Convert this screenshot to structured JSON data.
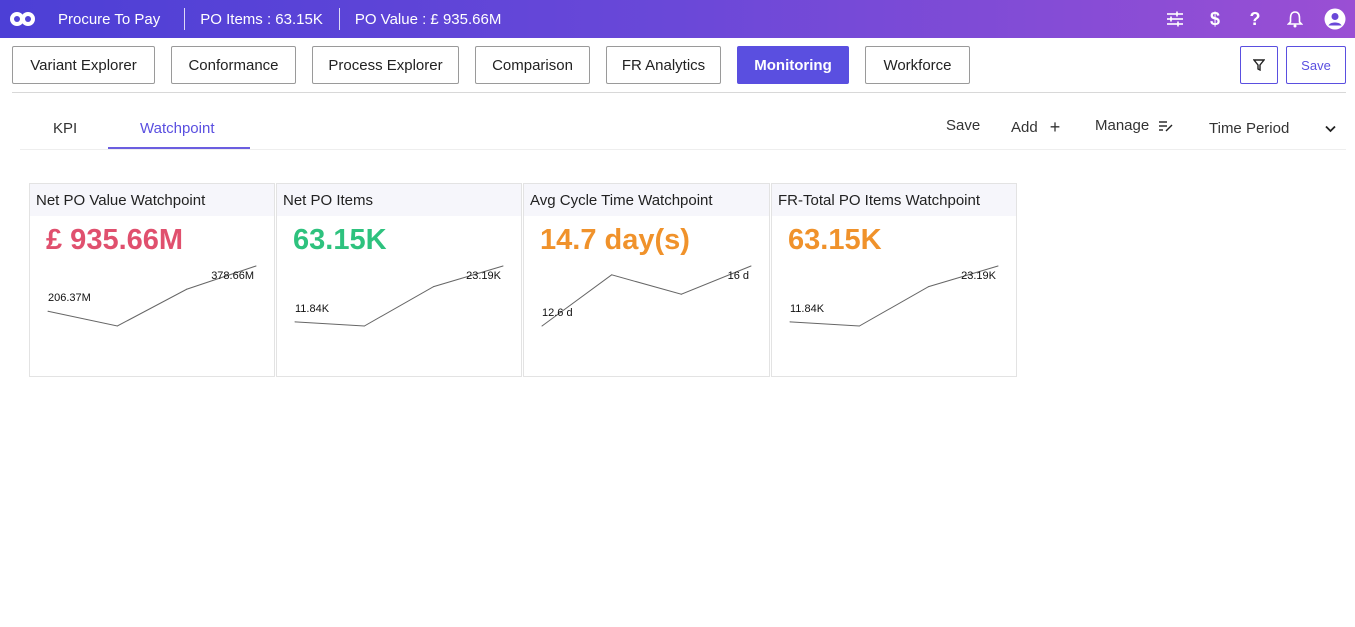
{
  "header": {
    "app_name": "Procure To Pay",
    "po_items": "PO Items : 63.15K",
    "po_value": "PO Value : £ 935.66M",
    "icons": [
      "sliders-icon",
      "dollar-icon",
      "help-icon",
      "bell-icon",
      "user-icon"
    ]
  },
  "nav": {
    "items": [
      "Variant Explorer",
      "Conformance",
      "Process Explorer",
      "Comparison",
      "FR Analytics",
      "Monitoring",
      "Workforce"
    ],
    "active": "Monitoring",
    "save_label": "Save"
  },
  "tabs": {
    "kpi": "KPI",
    "watchpoint": "Watchpoint"
  },
  "actions": {
    "save": "Save",
    "add": "Add",
    "manage": "Manage",
    "time_period": "Time Period"
  },
  "cards": [
    {
      "title": "Net PO Value Watchpoint",
      "value": "£ 935.66M",
      "color": "#e0506e",
      "start_label": "206.37M",
      "end_label": "378.66M",
      "series": [
        206.37,
        150,
        290,
        378.66
      ]
    },
    {
      "title": "Net PO Items",
      "value": "63.15K",
      "color": "#2ec27e",
      "start_label": "11.84K",
      "end_label": "23.19K",
      "series": [
        11.84,
        11.0,
        19.0,
        23.19
      ]
    },
    {
      "title": "Avg Cycle Time Watchpoint",
      "value": "14.7 day(s)",
      "color": "#f0922b",
      "start_label": "12.6 d",
      "end_label": "16 d",
      "series": [
        12.6,
        15.5,
        14.4,
        16
      ]
    },
    {
      "title": "FR-Total PO Items Watchpoint",
      "value": "63.15K",
      "color": "#f0922b",
      "start_label": "11.84K",
      "end_label": "23.19K",
      "series": [
        11.84,
        11.0,
        19.0,
        23.19
      ]
    }
  ]
}
